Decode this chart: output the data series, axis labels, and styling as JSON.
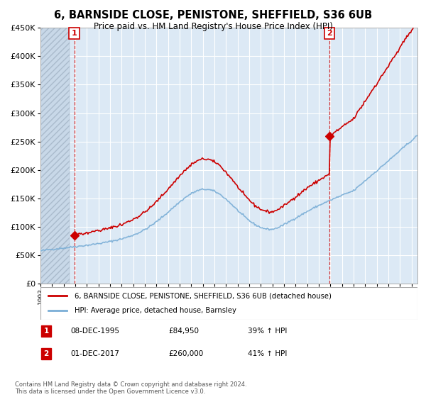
{
  "title": "6, BARNSIDE CLOSE, PENISTONE, SHEFFIELD, S36 6UB",
  "subtitle": "Price paid vs. HM Land Registry's House Price Index (HPI)",
  "ylim": [
    0,
    450000
  ],
  "xlim_start": 1993.0,
  "xlim_end": 2025.5,
  "sale1_date": 1995.92,
  "sale1_price": 84950,
  "sale1_label": "1",
  "sale2_date": 2017.92,
  "sale2_price": 260000,
  "sale2_label": "2",
  "property_line_color": "#cc0000",
  "hpi_line_color": "#7aaed6",
  "vline_color": "#cc0000",
  "background_color": "#ffffff",
  "plot_bg_color": "#dce9f5",
  "grid_color": "#ffffff",
  "legend_property": "6, BARNSIDE CLOSE, PENISTONE, SHEFFIELD, S36 6UB (detached house)",
  "legend_hpi": "HPI: Average price, detached house, Barnsley",
  "footer": "Contains HM Land Registry data © Crown copyright and database right 2024.\nThis data is licensed under the Open Government Licence v3.0.",
  "table_rows": [
    {
      "num": "1",
      "date": "08-DEC-1995",
      "price": "£84,950",
      "change": "39% ↑ HPI"
    },
    {
      "num": "2",
      "date": "01-DEC-2017",
      "price": "£260,000",
      "change": "41% ↑ HPI"
    }
  ],
  "hpi_seed": 42,
  "prop_seed": 99
}
